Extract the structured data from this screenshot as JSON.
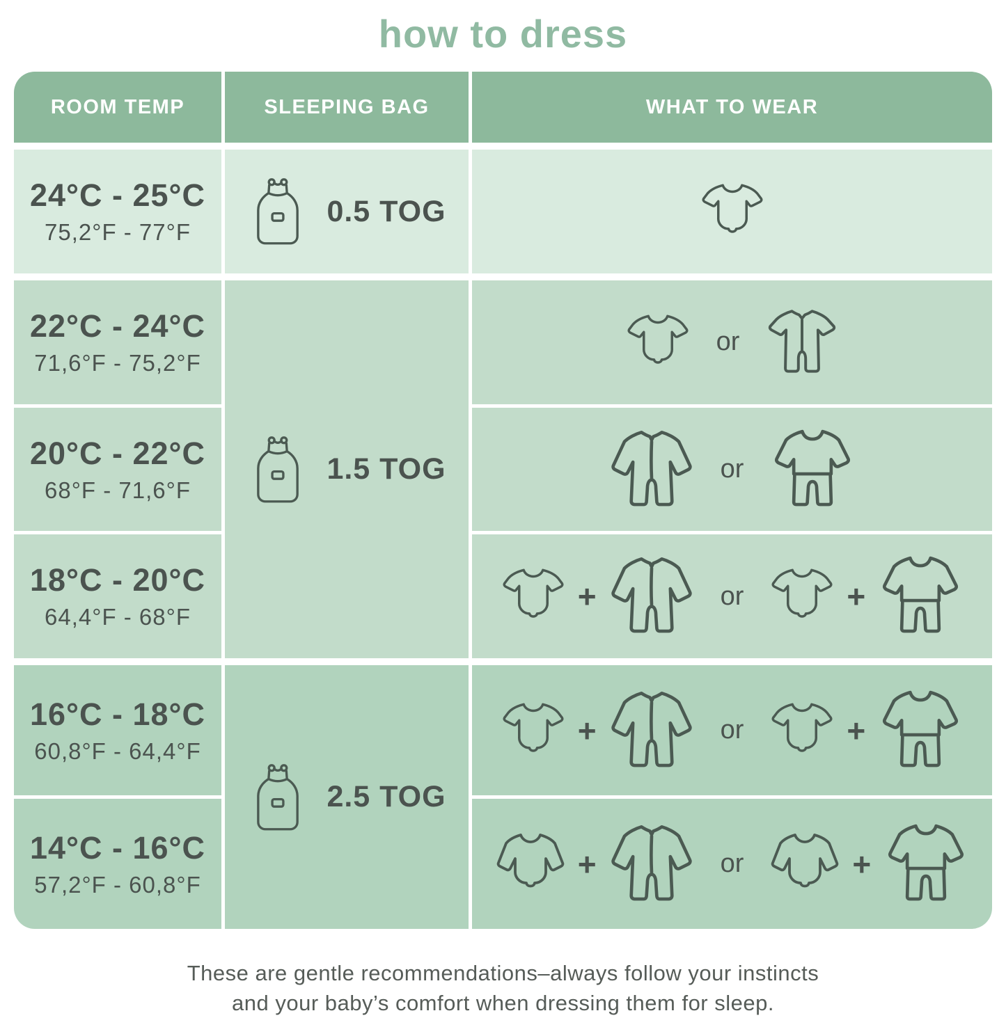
{
  "title": "how to dress",
  "colors": {
    "title_green": "#90baa2",
    "header_green": "#8db99c",
    "section_light": "#d9ebdf",
    "section_medium": "#c2dcca",
    "section_dark": "#b1d3bd",
    "text_dark": "#4b534f",
    "icon_stroke": "#4b5a52"
  },
  "table": {
    "headers": [
      "ROOM TEMP",
      "SLEEPING BAG",
      "WHAT TO WEAR"
    ],
    "sections": [
      {
        "bg": "#d9ebdf",
        "tog": {
          "label": "0.5 TOG",
          "icon": "sleeping-bag"
        },
        "rows": [
          {
            "temp_c": "24°C - 25°C",
            "temp_f": "75,2°F - 77°F",
            "wear": [
              {
                "icon": "bodysuit-short-sleeve"
              }
            ]
          }
        ]
      },
      {
        "bg": "#c2dcca",
        "tog": {
          "label": "1.5 TOG",
          "icon": "sleeping-bag"
        },
        "rows": [
          {
            "temp_c": "22°C - 24°C",
            "temp_f": "71,6°F - 75,2°F",
            "wear": [
              {
                "icon": "bodysuit-short-sleeve"
              },
              {
                "sep": "or"
              },
              {
                "icon": "romper-short-sleeve"
              }
            ]
          },
          {
            "temp_c": "20°C - 22°C",
            "temp_f": "68°F - 71,6°F",
            "wear": [
              {
                "icon": "sleepsuit"
              },
              {
                "sep": "or"
              },
              {
                "icon": "pajamas"
              }
            ]
          },
          {
            "temp_c": "18°C - 20°C",
            "temp_f": "64,4°F - 68°F",
            "wear": [
              {
                "icon": "bodysuit-short-sleeve"
              },
              {
                "sep": "+"
              },
              {
                "icon": "sleepsuit"
              },
              {
                "sep": "or"
              },
              {
                "icon": "bodysuit-short-sleeve"
              },
              {
                "sep": "+"
              },
              {
                "icon": "pajamas"
              }
            ]
          }
        ]
      },
      {
        "bg": "#b1d3bd",
        "tog": {
          "label": "2.5 TOG",
          "icon": "sleeping-bag"
        },
        "rows": [
          {
            "temp_c": "16°C - 18°C",
            "temp_f": "60,8°F - 64,4°F",
            "wear": [
              {
                "icon": "bodysuit-short-sleeve"
              },
              {
                "sep": "+"
              },
              {
                "icon": "sleepsuit"
              },
              {
                "sep": "or"
              },
              {
                "icon": "bodysuit-short-sleeve"
              },
              {
                "sep": "+"
              },
              {
                "icon": "pajamas"
              }
            ]
          },
          {
            "temp_c": "14°C - 16°C",
            "temp_f": "57,2°F - 60,8°F",
            "wear": [
              {
                "icon": "bodysuit-long-sleeve"
              },
              {
                "sep": "+"
              },
              {
                "icon": "sleepsuit"
              },
              {
                "sep": "or"
              },
              {
                "icon": "bodysuit-long-sleeve"
              },
              {
                "sep": "+"
              },
              {
                "icon": "pajamas"
              }
            ]
          }
        ]
      }
    ]
  },
  "footer": {
    "line1": "These are gentle recommendations–always follow your instincts",
    "line2": "and your baby’s comfort when dressing them for sleep."
  }
}
